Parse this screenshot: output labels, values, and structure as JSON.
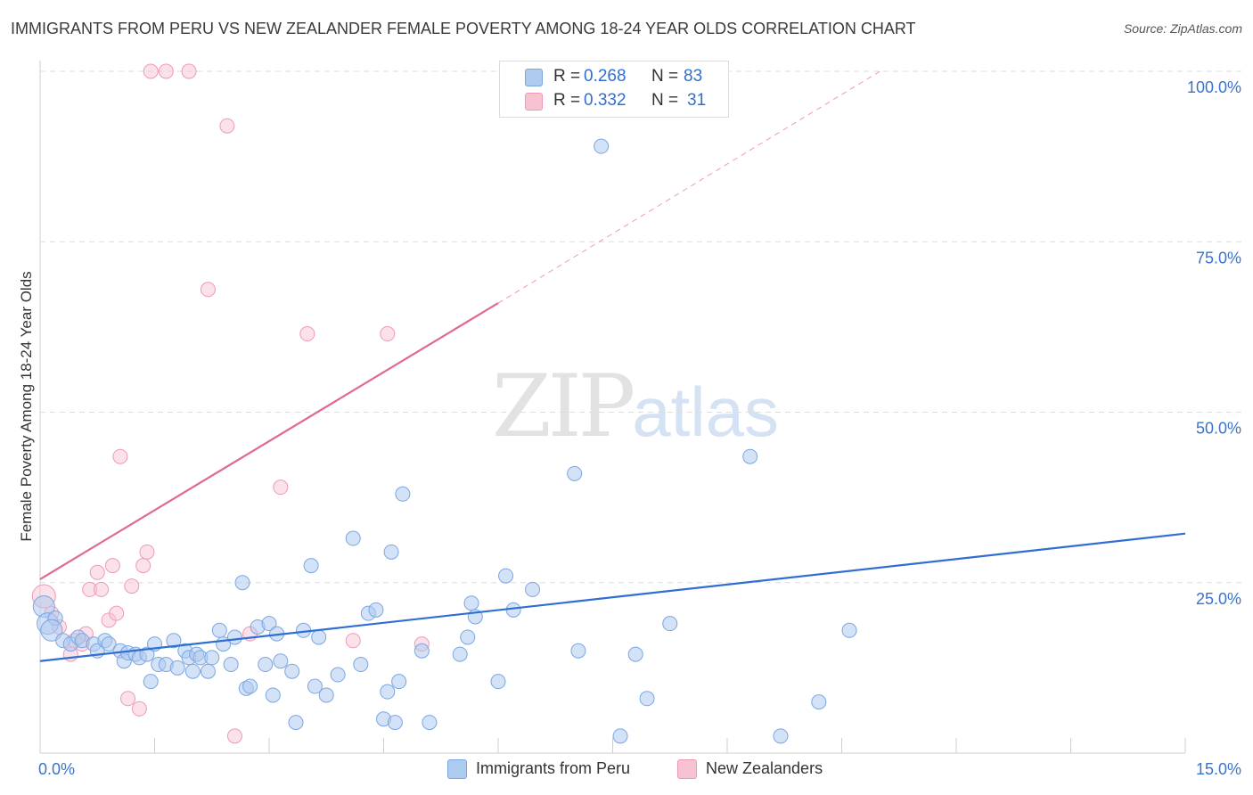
{
  "title": "IMMIGRANTS FROM PERU VS NEW ZEALANDER FEMALE POVERTY AMONG 18-24 YEAR OLDS CORRELATION CHART",
  "source": "Source: ZipAtlas.com",
  "watermark": {
    "zip": "ZIP",
    "atlas": "atlas"
  },
  "legend": {
    "r_label": "R =",
    "n_label": "N =",
    "items": [
      {
        "r": "0.268",
        "n": "83"
      },
      {
        "r": "0.332",
        "n": "31"
      }
    ]
  },
  "colors": {
    "blue": "#2f6fd2",
    "blue_fill": "#aecbf0",
    "blue_stroke": "#7aa7e0",
    "pink": "#e0698f",
    "pink_fill": "#f7c3d3",
    "pink_stroke": "#ef9ab5",
    "axis_text": "#3a73cc",
    "grid": "#dddddd"
  },
  "chart_data": {
    "type": "scatter",
    "title": "IMMIGRANTS FROM PERU VS NEW ZEALANDER FEMALE POVERTY AMONG 18-24 YEAR OLDS CORRELATION CHART",
    "xlabel": "",
    "ylabel": "Female Poverty Among 18-24 Year Olds",
    "xlim": [
      0,
      15
    ],
    "ylim": [
      0,
      100
    ],
    "x_tick_labels": [
      "0.0%",
      "15.0%"
    ],
    "y_ticks": [
      25,
      50,
      75,
      100
    ],
    "y_tick_labels": [
      "25.0%",
      "50.0%",
      "75.0%",
      "100.0%"
    ],
    "grid": true,
    "legend_position": "top-center",
    "series": [
      {
        "name": "Immigrants from Peru",
        "r": 0.268,
        "n": 83,
        "trend": {
          "x": [
            0,
            15
          ],
          "y": [
            13.5,
            32.2
          ],
          "style": "solid"
        },
        "points": [
          [
            0.05,
            21.5
          ],
          [
            0.1,
            19
          ],
          [
            0.2,
            19.8
          ],
          [
            0.15,
            18
          ],
          [
            0.3,
            16.5
          ],
          [
            0.4,
            16
          ],
          [
            0.5,
            17
          ],
          [
            0.55,
            16.5
          ],
          [
            0.7,
            16
          ],
          [
            0.75,
            15
          ],
          [
            0.85,
            16.5
          ],
          [
            0.9,
            16
          ],
          [
            1.05,
            15
          ],
          [
            1.1,
            13.5
          ],
          [
            1.15,
            14.7
          ],
          [
            1.25,
            14.5
          ],
          [
            1.3,
            14
          ],
          [
            1.4,
            14.5
          ],
          [
            1.45,
            10.5
          ],
          [
            1.5,
            16
          ],
          [
            1.55,
            13
          ],
          [
            1.65,
            13
          ],
          [
            1.75,
            16.5
          ],
          [
            1.8,
            12.5
          ],
          [
            1.9,
            15
          ],
          [
            1.95,
            14
          ],
          [
            2.0,
            12
          ],
          [
            2.05,
            14.5
          ],
          [
            2.1,
            14
          ],
          [
            2.2,
            12
          ],
          [
            2.25,
            14
          ],
          [
            2.35,
            18
          ],
          [
            2.4,
            16
          ],
          [
            2.5,
            13
          ],
          [
            2.55,
            17
          ],
          [
            2.65,
            25
          ],
          [
            2.7,
            9.5
          ],
          [
            2.75,
            9.8
          ],
          [
            2.85,
            18.5
          ],
          [
            2.95,
            13
          ],
          [
            3.0,
            19
          ],
          [
            3.05,
            8.5
          ],
          [
            3.1,
            17.5
          ],
          [
            3.15,
            13.5
          ],
          [
            3.3,
            12
          ],
          [
            3.35,
            4.5
          ],
          [
            3.45,
            18
          ],
          [
            3.55,
            27.5
          ],
          [
            3.6,
            9.8
          ],
          [
            3.65,
            17
          ],
          [
            3.75,
            8.5
          ],
          [
            3.9,
            11.5
          ],
          [
            4.1,
            31.5
          ],
          [
            4.2,
            13
          ],
          [
            4.3,
            20.5
          ],
          [
            4.4,
            21
          ],
          [
            4.5,
            5
          ],
          [
            4.55,
            9
          ],
          [
            4.6,
            29.5
          ],
          [
            4.65,
            4.5
          ],
          [
            4.7,
            10.5
          ],
          [
            4.75,
            38
          ],
          [
            5.0,
            15
          ],
          [
            5.1,
            4.5
          ],
          [
            5.5,
            14.5
          ],
          [
            5.6,
            17
          ],
          [
            5.65,
            22
          ],
          [
            5.7,
            20
          ],
          [
            6.0,
            10.5
          ],
          [
            6.1,
            26
          ],
          [
            6.2,
            21
          ],
          [
            6.45,
            24
          ],
          [
            7.0,
            41
          ],
          [
            7.05,
            15
          ],
          [
            7.35,
            89
          ],
          [
            7.6,
            2.5
          ],
          [
            7.8,
            14.5
          ],
          [
            7.95,
            8
          ],
          [
            8.25,
            19
          ],
          [
            9.3,
            43.5
          ],
          [
            9.7,
            2.5
          ],
          [
            10.2,
            7.5
          ],
          [
            10.6,
            18
          ]
        ]
      },
      {
        "name": "New Zealanders",
        "r": 0.332,
        "n": 31,
        "trend": {
          "x": [
            0,
            6.0
          ],
          "y": [
            25.5,
            66
          ],
          "x_dashed": [
            6.0,
            11
          ],
          "y_dashed": [
            66,
            100
          ]
        },
        "points": [
          [
            0.05,
            23
          ],
          [
            0.15,
            20.5
          ],
          [
            0.25,
            18.5
          ],
          [
            0.4,
            14.5
          ],
          [
            0.45,
            16.5
          ],
          [
            0.55,
            16
          ],
          [
            0.6,
            17.5
          ],
          [
            0.65,
            24
          ],
          [
            0.75,
            26.5
          ],
          [
            0.8,
            24
          ],
          [
            0.9,
            19.5
          ],
          [
            0.95,
            27.5
          ],
          [
            1.0,
            20.5
          ],
          [
            1.05,
            43.5
          ],
          [
            1.15,
            8
          ],
          [
            1.2,
            24.5
          ],
          [
            1.3,
            6.5
          ],
          [
            1.35,
            27.5
          ],
          [
            1.4,
            29.5
          ],
          [
            1.45,
            100
          ],
          [
            1.65,
            100
          ],
          [
            1.95,
            100
          ],
          [
            2.2,
            68
          ],
          [
            2.45,
            92
          ],
          [
            2.55,
            2.5
          ],
          [
            2.75,
            17.5
          ],
          [
            3.15,
            39
          ],
          [
            3.5,
            61.5
          ],
          [
            4.1,
            16.5
          ],
          [
            4.55,
            61.5
          ],
          [
            5.0,
            16
          ]
        ]
      }
    ]
  },
  "bottom_legend": [
    "Immigrants from Peru",
    "New Zealanders"
  ]
}
